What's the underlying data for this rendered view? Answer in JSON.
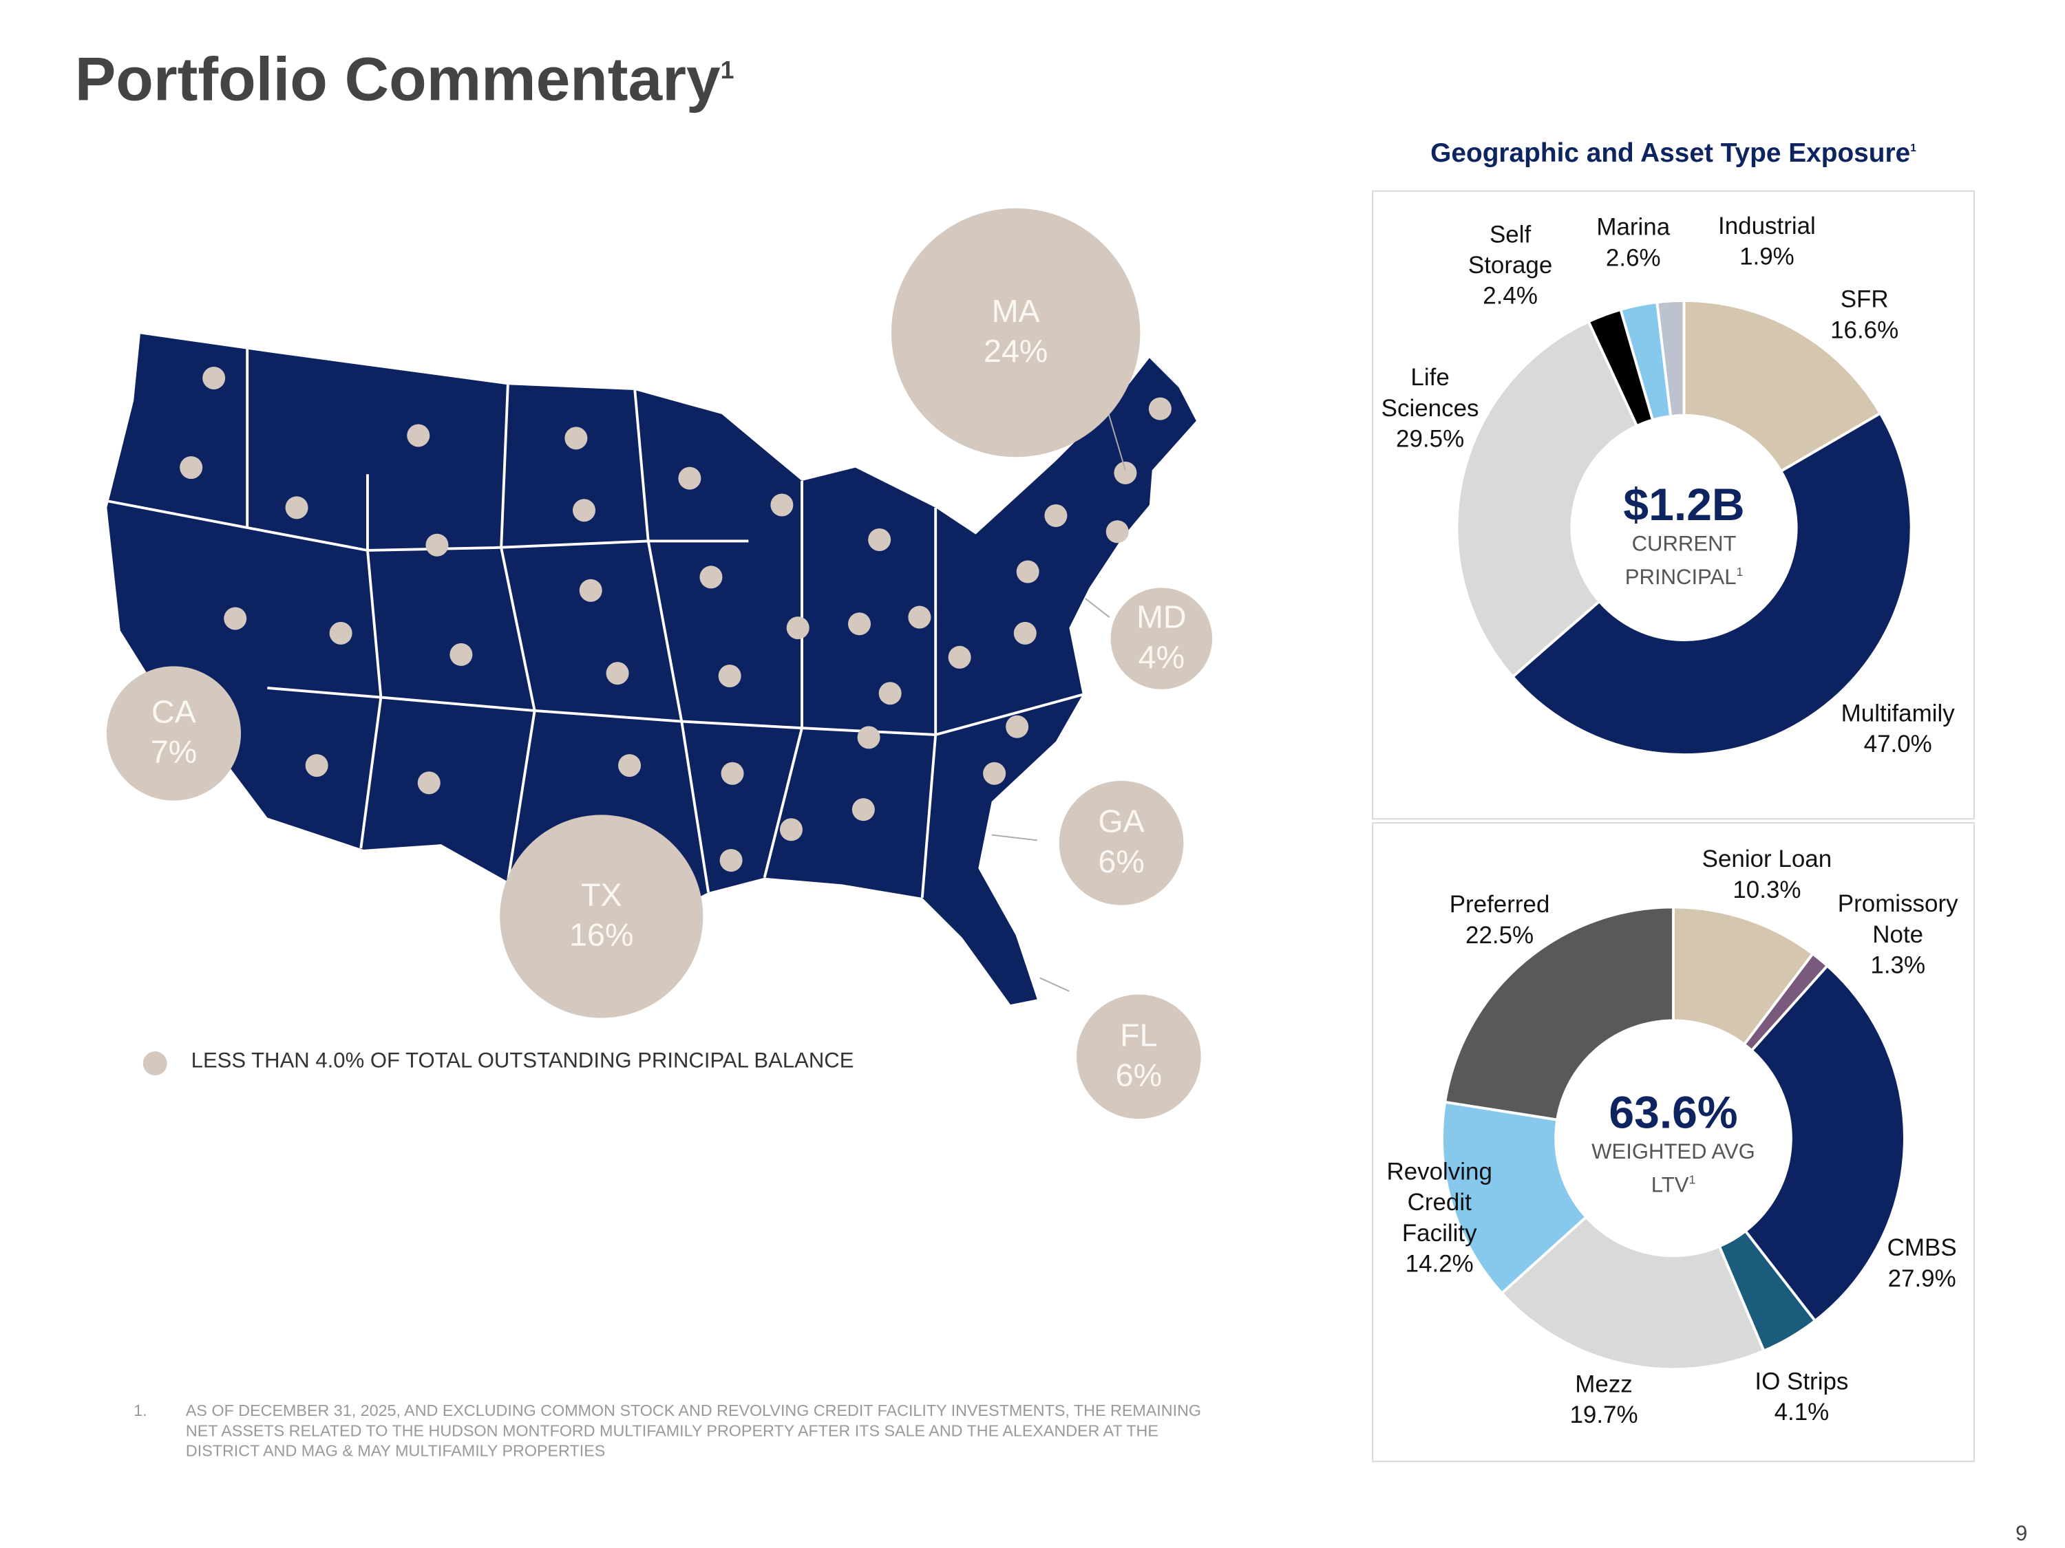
{
  "header": {
    "title": "Portfolio Commentary",
    "title_sup": "1"
  },
  "map": {
    "categories": [
      "MA",
      "MD",
      "CA",
      "GA",
      "TX",
      "FL"
    ],
    "values": [
      24,
      4,
      7,
      6,
      16,
      6
    ],
    "value_labels": [
      "24%",
      "4%",
      "7%",
      "6%",
      "16%",
      "6%"
    ],
    "color": "#d5c9bf",
    "map_color": "#0d2260",
    "legend": "LESS THAN 4.0% OF TOTAL OUTSTANDING PRINCIPAL BALANCE"
  },
  "chart_data": [
    {
      "type": "donut",
      "title": "Geographic and Asset Type Exposure",
      "title_sup": "1",
      "center_value": "$1.2B",
      "center_label": "CURRENT PRINCIPAL",
      "center_sup": "1",
      "categories": [
        "SFR",
        "Multifamily",
        "Life Sciences",
        "Self Storage",
        "Marina",
        "Industrial"
      ],
      "values": [
        16.6,
        47.0,
        29.5,
        2.4,
        2.6,
        1.9
      ],
      "value_labels": [
        "16.6%",
        "47.0%",
        "29.5%",
        "2.4%",
        "2.6%",
        "1.9%"
      ],
      "colors": [
        "#d5c6b0",
        "#0d2260",
        "#d9d9d9",
        "#000000",
        "#86c9ec",
        "#bcc3cf"
      ]
    },
    {
      "type": "donut",
      "center_value": "63.6%",
      "center_label": "WEIGHTED AVG LTV",
      "center_sup": "1",
      "categories": [
        "Senior Loan",
        "Promissory Note",
        "CMBS",
        "IO Strips",
        "Mezz",
        "Revolving Credit Facility",
        "Preferred"
      ],
      "values": [
        10.3,
        1.3,
        27.9,
        4.1,
        19.7,
        14.2,
        22.5
      ],
      "value_labels": [
        "10.3%",
        "1.3%",
        "27.9%",
        "4.1%",
        "19.7%",
        "14.2%",
        "22.5%"
      ],
      "colors": [
        "#d5c6b0",
        "#7a5a7c",
        "#0d2260",
        "#1b5b7c",
        "#d9d9d9",
        "#86c9ec",
        "#595959"
      ]
    }
  ],
  "footnote": {
    "number": "1.",
    "text": "AS OF DECEMBER 31, 2025, AND EXCLUDING COMMON STOCK AND REVOLVING CREDIT FACILITY INVESTMENTS, THE REMAINING NET ASSETS RELATED TO THE HUDSON MONTFORD MULTIFAMILY PROPERTY AFTER ITS SALE AND THE ALEXANDER AT THE DISTRICT AND MAG & MAY MULTIFAMILY PROPERTIES"
  },
  "page_number": "9"
}
